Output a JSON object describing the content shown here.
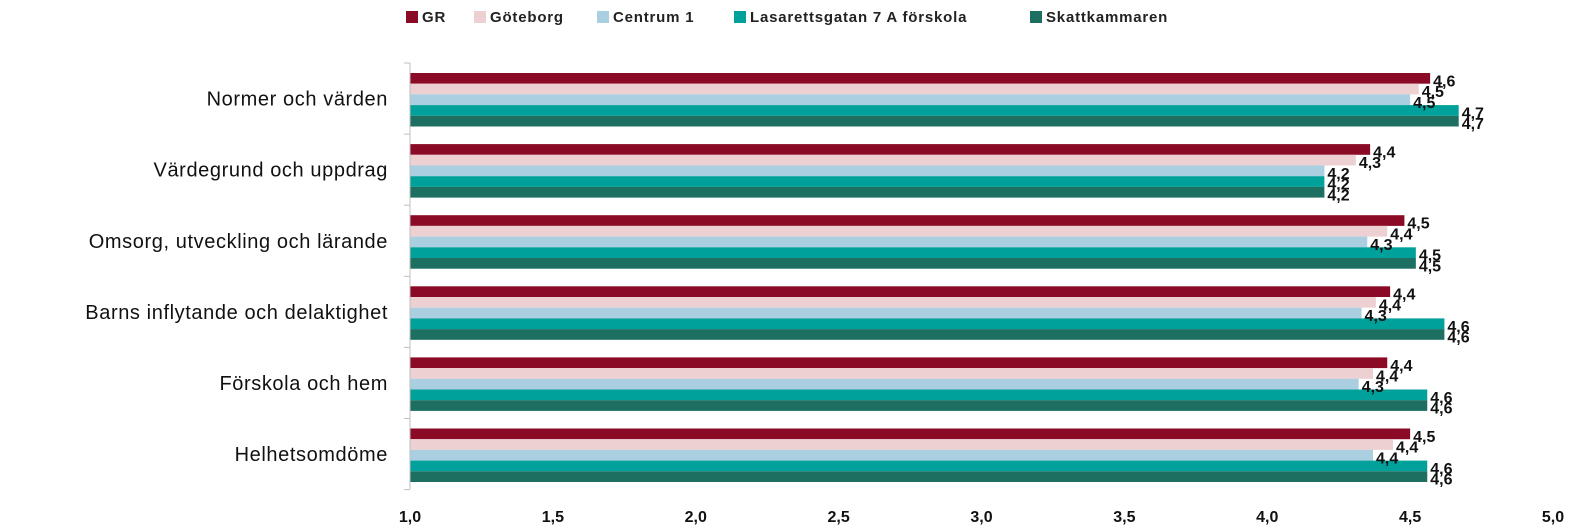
{
  "chart_data": {
    "type": "bar",
    "orientation": "horizontal",
    "categories": [
      "Normer och värden",
      "Värdegrund och uppdrag",
      "Omsorg, utveckling och lärande",
      "Barns inflytande och delaktighet",
      "Förskola och hem",
      "Helhetsomdöme"
    ],
    "series": [
      {
        "name": "GR",
        "color": "#8b0a26",
        "values": [
          4.57,
          4.36,
          4.48,
          4.43,
          4.42,
          4.5
        ],
        "labels": [
          "4,6",
          "4,4",
          "4,5",
          "4,4",
          "4,4",
          "4,5"
        ]
      },
      {
        "name": "Göteborg",
        "color": "#ecd0d2",
        "values": [
          4.53,
          4.31,
          4.42,
          4.38,
          4.37,
          4.44
        ],
        "labels": [
          "4,5",
          "4,3",
          "4,4",
          "4,4",
          "4,4",
          "4,4"
        ]
      },
      {
        "name": "Centrum 1",
        "color": "#a9cfe0",
        "values": [
          4.5,
          4.2,
          4.35,
          4.33,
          4.32,
          4.37
        ],
        "labels": [
          "4,5",
          "4,2",
          "4,3",
          "4,3",
          "4,3",
          "4,4"
        ]
      },
      {
        "name": "Lasarettsgatan 7 A förskola",
        "color": "#00a19a",
        "values": [
          4.67,
          4.2,
          4.52,
          4.62,
          4.56,
          4.56
        ],
        "labels": [
          "4,7",
          "4,2",
          "4,5",
          "4,6",
          "4,6",
          "4,6"
        ]
      },
      {
        "name": "Skattkammaren",
        "color": "#1d6f62",
        "values": [
          4.67,
          4.2,
          4.52,
          4.62,
          4.56,
          4.56
        ],
        "labels": [
          "4,7",
          "4,2",
          "4,5",
          "4,6",
          "4,6",
          "4,6"
        ]
      }
    ],
    "xlim": [
      1.0,
      5.0
    ],
    "xticks": [
      1.0,
      1.5,
      2.0,
      2.5,
      3.0,
      3.5,
      4.0,
      4.5,
      5.0
    ],
    "xtick_labels": [
      "1,0",
      "1,5",
      "2,0",
      "2,5",
      "3,0",
      "3,5",
      "4,0",
      "4,5",
      "5,0"
    ],
    "legend_position": "top-center",
    "grid": false
  }
}
